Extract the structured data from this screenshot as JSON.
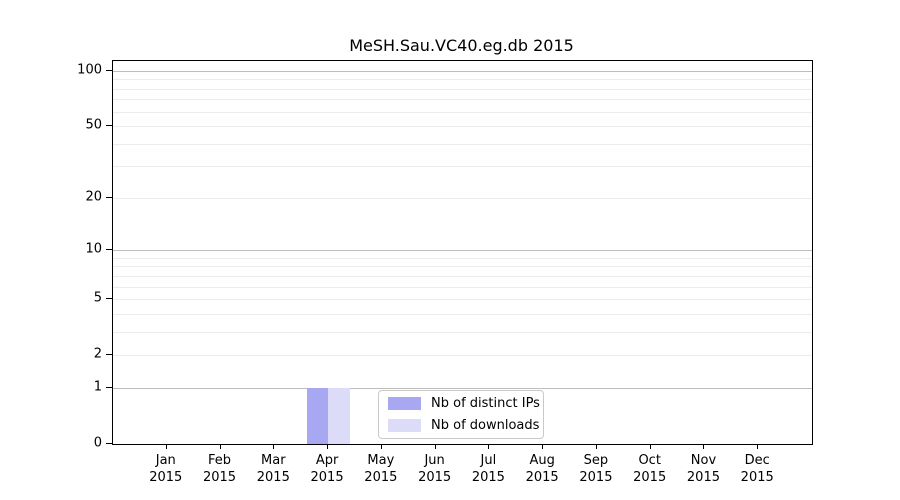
{
  "figure": {
    "background": "#ffffff"
  },
  "chart_data": {
    "type": "bar",
    "title": "MeSH.Sau.VC40.eg.db 2015",
    "xlabel": "",
    "ylabel": "",
    "x_year": "2015",
    "categories": [
      "Jan",
      "Feb",
      "Mar",
      "Apr",
      "May",
      "Jun",
      "Jul",
      "Aug",
      "Sep",
      "Oct",
      "Nov",
      "Dec"
    ],
    "series": [
      {
        "name": "Nb of distinct IPs",
        "color": "#a7a7f2",
        "values": [
          0,
          0,
          0,
          1,
          0,
          0,
          0,
          0,
          0,
          0,
          0,
          0
        ]
      },
      {
        "name": "Nb of downloads",
        "color": "#dcdcf8",
        "values": [
          0,
          0,
          0,
          1,
          0,
          0,
          0,
          0,
          0,
          0,
          0,
          0
        ]
      }
    ],
    "y_scale": "log1p",
    "ylim": [
      0,
      113
    ],
    "y_ticks": [
      0,
      1,
      2,
      5,
      10,
      20,
      50,
      100
    ],
    "y_major_grid": [
      1,
      10,
      100
    ],
    "y_minor_grid": [
      2,
      3,
      4,
      5,
      6,
      7,
      8,
      9,
      20,
      30,
      40,
      50,
      60,
      70,
      80,
      90
    ],
    "grid": "horizontal",
    "legend_position": "inside-bottom-center",
    "colors": {
      "major_grid": "#bdbdbd",
      "minor_grid": "#ececec",
      "axis": "#000000",
      "text": "#000000",
      "legend_border": "#c9c9c9"
    }
  }
}
